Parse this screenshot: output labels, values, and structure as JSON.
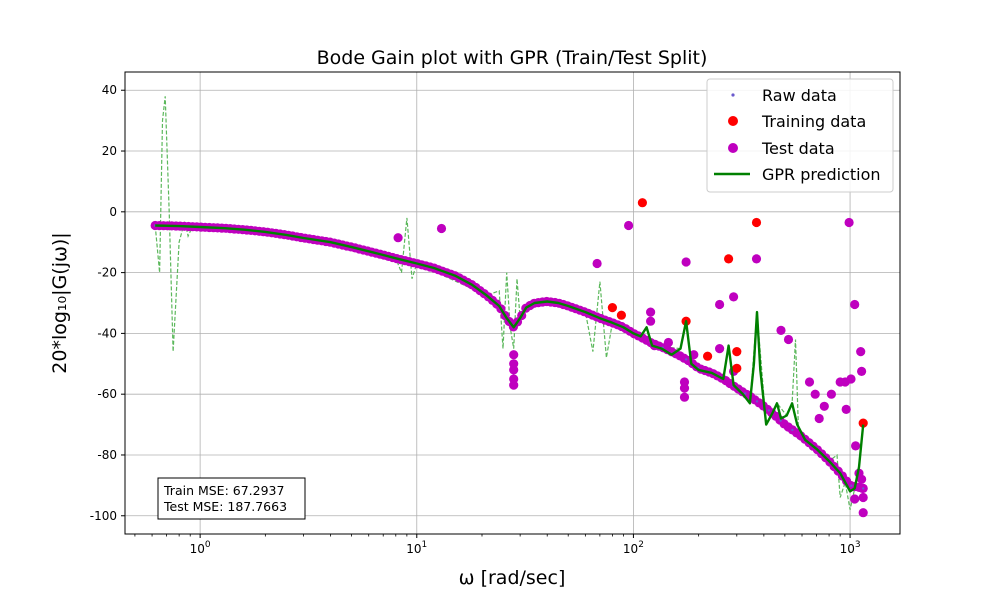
{
  "chart_data": {
    "type": "scatter",
    "title": "Bode Gain plot with GPR (Train/Test Split)",
    "xlabel": "ω [rad/sec]",
    "ylabel": "20*log₁₀|G(jω)|",
    "xscale": "log",
    "xlim": [
      0.45,
      1700
    ],
    "ylim": [
      -106,
      46
    ],
    "grid": true,
    "x_ticks": [
      {
        "value": 1,
        "base": "10",
        "exp": "0"
      },
      {
        "value": 10,
        "base": "10",
        "exp": "1"
      },
      {
        "value": 100,
        "base": "10",
        "exp": "2"
      },
      {
        "value": 1000,
        "base": "10",
        "exp": "3"
      }
    ],
    "y_ticks": [
      40,
      20,
      0,
      -20,
      -40,
      -60,
      -80,
      -100
    ],
    "legend": {
      "position": "top-right",
      "entries": [
        {
          "label": "Raw data",
          "marker": "small-dot",
          "color": "#6a5acd"
        },
        {
          "label": "Training data",
          "marker": "dot",
          "color": "#ff0000"
        },
        {
          "label": "Test data",
          "marker": "dot",
          "color": "#bf00bf"
        },
        {
          "label": "GPR prediction",
          "marker": "line",
          "color": "#008000"
        }
      ]
    },
    "annotations": {
      "train_mse": "Train MSE: 67.2937",
      "test_mse": "Test MSE: 187.7663"
    },
    "colors": {
      "raw": "#6a5acd",
      "train": "#ff0000",
      "test": "#bf00bf",
      "prediction": "#008000",
      "uncertainty": "#5cb85c"
    },
    "curve": [
      [
        0.62,
        -4.5
      ],
      [
        0.8,
        -4.7
      ],
      [
        1.0,
        -5.0
      ],
      [
        1.3,
        -5.4
      ],
      [
        1.6,
        -5.9
      ],
      [
        2.0,
        -6.6
      ],
      [
        2.5,
        -7.6
      ],
      [
        3.0,
        -8.6
      ],
      [
        4.0,
        -10.0
      ],
      [
        5.0,
        -11.6
      ],
      [
        6.0,
        -13.0
      ],
      [
        7.0,
        -14.2
      ],
      [
        8.0,
        -15.3
      ],
      [
        10.0,
        -17.0
      ],
      [
        12.0,
        -18.5
      ],
      [
        15.0,
        -21.0
      ],
      [
        18.0,
        -24.0
      ],
      [
        21.0,
        -27.5
      ],
      [
        24.0,
        -31.0
      ],
      [
        26.0,
        -35.0
      ],
      [
        28.0,
        -38.0
      ],
      [
        30.0,
        -35.0
      ],
      [
        32.0,
        -31.5
      ],
      [
        35.0,
        -30.0
      ],
      [
        40.0,
        -29.5
      ],
      [
        45.0,
        -30.0
      ],
      [
        50.0,
        -31.0
      ],
      [
        60.0,
        -33.0
      ],
      [
        70.0,
        -35.0
      ],
      [
        80.0,
        -36.5
      ],
      [
        90.0,
        -38.0
      ],
      [
        100.0,
        -40.0
      ],
      [
        110.0,
        -41.5
      ],
      [
        120.0,
        -43.0
      ],
      [
        140.0,
        -45.0
      ],
      [
        160.0,
        -47.0
      ],
      [
        180.0,
        -49.0
      ],
      [
        200.0,
        -51.5
      ],
      [
        230.0,
        -53.0
      ],
      [
        260.0,
        -55.0
      ],
      [
        300.0,
        -58.0
      ],
      [
        350.0,
        -61.0
      ],
      [
        400.0,
        -64.0
      ],
      [
        450.0,
        -67.0
      ],
      [
        500.0,
        -70.0
      ],
      [
        600.0,
        -74.0
      ],
      [
        700.0,
        -78.0
      ],
      [
        800.0,
        -82.0
      ],
      [
        900.0,
        -86.0
      ],
      [
        1000.0,
        -90.0
      ],
      [
        1150.0,
        -91.0
      ]
    ],
    "gpr_prediction": [
      [
        100.0,
        -40.0
      ],
      [
        108.0,
        -41.0
      ],
      [
        115.0,
        -38.0
      ],
      [
        122.0,
        -44.0
      ],
      [
        135.0,
        -45.0
      ],
      [
        150.0,
        -47.0
      ],
      [
        165.0,
        -45.0
      ],
      [
        175.0,
        -36.0
      ],
      [
        185.0,
        -50.0
      ],
      [
        200.0,
        -52.0
      ],
      [
        230.0,
        -53.0
      ],
      [
        260.0,
        -55.0
      ],
      [
        275.0,
        -44.0
      ],
      [
        290.0,
        -57.0
      ],
      [
        320.0,
        -60.0
      ],
      [
        345.0,
        -63.0
      ],
      [
        360.0,
        -50.0
      ],
      [
        372.0,
        -33.0
      ],
      [
        385.0,
        -52.0
      ],
      [
        410.0,
        -70.0
      ],
      [
        440.0,
        -66.0
      ],
      [
        460.0,
        -63.0
      ],
      [
        480.0,
        -68.0
      ],
      [
        510.0,
        -67.0
      ],
      [
        540.0,
        -63.0
      ],
      [
        570.0,
        -70.0
      ],
      [
        620.0,
        -75.0
      ],
      [
        700.0,
        -78.0
      ],
      [
        800.0,
        -82.0
      ],
      [
        900.0,
        -86.0
      ],
      [
        950.0,
        -89.0
      ],
      [
        1000.0,
        -92.0
      ],
      [
        1050.0,
        -91.0
      ],
      [
        1100.0,
        -84.0
      ],
      [
        1150.0,
        -70.0
      ]
    ],
    "uncertainty_curve": [
      [
        0.62,
        -4.5
      ],
      [
        0.65,
        -20.0
      ],
      [
        0.67,
        30.0
      ],
      [
        0.69,
        38.0
      ],
      [
        0.72,
        0.0
      ],
      [
        0.75,
        -46.0
      ],
      [
        0.8,
        -10.0
      ],
      [
        0.85,
        -3.0
      ],
      [
        0.88,
        -8.0
      ],
      [
        0.92,
        -5.0
      ],
      [
        1.0,
        -5.0
      ],
      [
        3.0,
        -8.6
      ],
      [
        8.0,
        -15.3
      ],
      [
        8.5,
        -20.0
      ],
      [
        9.0,
        -2.0
      ],
      [
        9.5,
        -22.0
      ],
      [
        10.0,
        -17.0
      ],
      [
        21.0,
        -27.5
      ],
      [
        24.0,
        -26.0
      ],
      [
        25.0,
        -45.0
      ],
      [
        26.0,
        -20.0
      ],
      [
        27.0,
        -38.0
      ],
      [
        28.0,
        -45.0
      ],
      [
        29.0,
        -22.0
      ],
      [
        30.0,
        -35.0
      ],
      [
        32.0,
        -31.5
      ],
      [
        40.0,
        -29.5
      ],
      [
        60.0,
        -33.0
      ],
      [
        65.0,
        -46.0
      ],
      [
        70.0,
        -23.0
      ],
      [
        75.0,
        -48.0
      ],
      [
        80.0,
        -36.5
      ],
      [
        100.0,
        -40.0
      ],
      [
        108.0,
        -41.0
      ],
      [
        115.0,
        -38.0
      ],
      [
        122.0,
        -44.0
      ],
      [
        165.0,
        -45.0
      ],
      [
        175.0,
        -36.0
      ],
      [
        185.0,
        -50.0
      ],
      [
        260.0,
        -55.0
      ],
      [
        275.0,
        -44.0
      ],
      [
        290.0,
        -57.0
      ],
      [
        345.0,
        -63.0
      ],
      [
        372.0,
        -33.0
      ],
      [
        410.0,
        -70.0
      ],
      [
        460.0,
        -63.0
      ],
      [
        510.0,
        -67.0
      ],
      [
        540.0,
        -63.0
      ],
      [
        560.0,
        -42.0
      ],
      [
        580.0,
        -75.0
      ],
      [
        620.0,
        -75.0
      ],
      [
        800.0,
        -82.0
      ],
      [
        870.0,
        -80.0
      ],
      [
        900.0,
        -94.0
      ],
      [
        950.0,
        -89.0
      ],
      [
        1000.0,
        -98.0
      ],
      [
        1050.0,
        -91.0
      ],
      [
        1100.0,
        -84.0
      ],
      [
        1150.0,
        -70.0
      ]
    ],
    "training_points": [
      [
        80,
        -31.5
      ],
      [
        88,
        -34
      ],
      [
        110,
        3
      ],
      [
        175,
        -36
      ],
      [
        220,
        -47.5
      ],
      [
        275,
        -15.5
      ],
      [
        300,
        -46
      ],
      [
        300,
        -51.5
      ],
      [
        370,
        -3.5
      ],
      [
        1150,
        -69.5
      ]
    ],
    "test_points": [
      [
        8.2,
        -8.5
      ],
      [
        13,
        -5.5
      ],
      [
        28,
        -47
      ],
      [
        28,
        -50
      ],
      [
        28,
        -52
      ],
      [
        28,
        -55
      ],
      [
        28,
        -57
      ],
      [
        68,
        -17
      ],
      [
        95,
        -4.5
      ],
      [
        120,
        -33
      ],
      [
        120,
        -36
      ],
      [
        125,
        -44
      ],
      [
        145,
        -43
      ],
      [
        172,
        -56
      ],
      [
        172,
        -58
      ],
      [
        172,
        -61
      ],
      [
        175,
        -16.5
      ],
      [
        190,
        -47
      ],
      [
        250,
        -45
      ],
      [
        250,
        -30.5
      ],
      [
        290,
        -28
      ],
      [
        290,
        -52.5
      ],
      [
        370,
        -15.5
      ],
      [
        480,
        -39
      ],
      [
        520,
        -42
      ],
      [
        650,
        -56
      ],
      [
        690,
        -60
      ],
      [
        720,
        -68
      ],
      [
        760,
        -64
      ],
      [
        820,
        -60
      ],
      [
        900,
        -56
      ],
      [
        950,
        -56
      ],
      [
        960,
        -65
      ],
      [
        990,
        -3.5
      ],
      [
        1010,
        -55
      ],
      [
        1050,
        -30.5
      ],
      [
        1060,
        -77
      ],
      [
        1120,
        -46
      ],
      [
        1130,
        -52.5
      ],
      [
        1150,
        -99
      ],
      [
        1150,
        -94
      ],
      [
        1050,
        -94.5
      ],
      [
        1100,
        -86
      ],
      [
        1130,
        -88
      ],
      [
        1140,
        -91
      ]
    ]
  }
}
